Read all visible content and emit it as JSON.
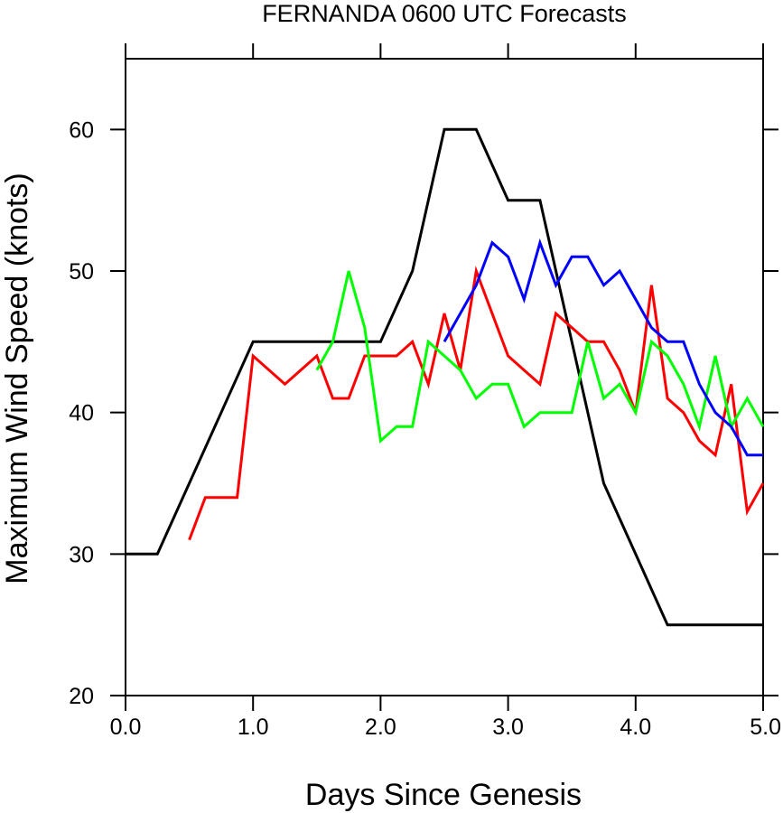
{
  "chart_data": {
    "type": "line",
    "title": "FERNANDA 0600 UTC Forecasts",
    "xlabel": "Days Since Genesis",
    "ylabel": "Maximum Wind Speed (knots)",
    "xlim": [
      0,
      5
    ],
    "ylim": [
      20,
      65
    ],
    "xticks": [
      0,
      1,
      2,
      3,
      4,
      5
    ],
    "xtick_labels": [
      "0.0",
      "1.0",
      "2.0",
      "3.0",
      "4.0",
      "5.0"
    ],
    "yticks": [
      20,
      30,
      40,
      50,
      60
    ],
    "ytick_labels": [
      "20",
      "30",
      "40",
      "50",
      "60"
    ],
    "grid": false,
    "legend": "none",
    "series": [
      {
        "color": "#000000",
        "x": [
          0,
          0.25,
          0.5,
          0.75,
          1.0,
          1.25,
          1.5,
          1.75,
          2.0,
          2.25,
          2.5,
          2.75,
          3.0,
          3.25,
          3.5,
          3.75,
          4.0,
          4.25,
          4.5,
          4.75,
          5.0
        ],
        "y": [
          30,
          30,
          35,
          40,
          45,
          45,
          45,
          45,
          45,
          50,
          60,
          60,
          55,
          55,
          45,
          35,
          30,
          25,
          25,
          25,
          25
        ]
      },
      {
        "color": "#ff0000",
        "x": [
          0.5,
          0.625,
          0.875,
          1.0,
          1.25,
          1.5,
          1.625,
          1.75,
          1.875,
          2.0,
          2.125,
          2.25,
          2.375,
          2.5,
          2.625,
          2.75,
          3.0,
          3.125,
          3.25,
          3.375,
          3.5,
          3.625,
          3.75,
          3.875,
          4.0,
          4.125,
          4.25,
          4.375,
          4.5,
          4.625,
          4.75,
          4.875,
          5.0
        ],
        "y": [
          31,
          34,
          34,
          44,
          42,
          44,
          41,
          41,
          44,
          44,
          44,
          45,
          42,
          47,
          43,
          50,
          44,
          43,
          42,
          47,
          46,
          45,
          45,
          43,
          40,
          49,
          41,
          40,
          38,
          37,
          42,
          33,
          35
        ]
      },
      {
        "color": "#00ff00",
        "x": [
          1.5,
          1.625,
          1.75,
          1.875,
          2.0,
          2.125,
          2.25,
          2.375,
          2.5,
          2.625,
          2.75,
          2.875,
          3.0,
          3.125,
          3.25,
          3.375,
          3.5,
          3.625,
          3.75,
          3.875,
          4.0,
          4.125,
          4.25,
          4.375,
          4.5,
          4.625,
          4.75,
          4.875,
          5.0
        ],
        "y": [
          43,
          45,
          50,
          46,
          38,
          39,
          39,
          45,
          44,
          43,
          41,
          42,
          42,
          39,
          40,
          40,
          40,
          45,
          41,
          42,
          40,
          45,
          44,
          42,
          39,
          44,
          39,
          41,
          39
        ]
      },
      {
        "color": "#0000ff",
        "x": [
          2.5,
          2.625,
          2.75,
          2.875,
          3.0,
          3.125,
          3.25,
          3.375,
          3.5,
          3.625,
          3.75,
          3.875,
          4.0,
          4.125,
          4.25,
          4.375,
          4.5,
          4.625,
          4.75,
          4.875,
          5.0
        ],
        "y": [
          45,
          47,
          49,
          52,
          51,
          48,
          52,
          49,
          51,
          51,
          49,
          50,
          48,
          46,
          45,
          45,
          42,
          40,
          39,
          37,
          37
        ]
      }
    ]
  }
}
